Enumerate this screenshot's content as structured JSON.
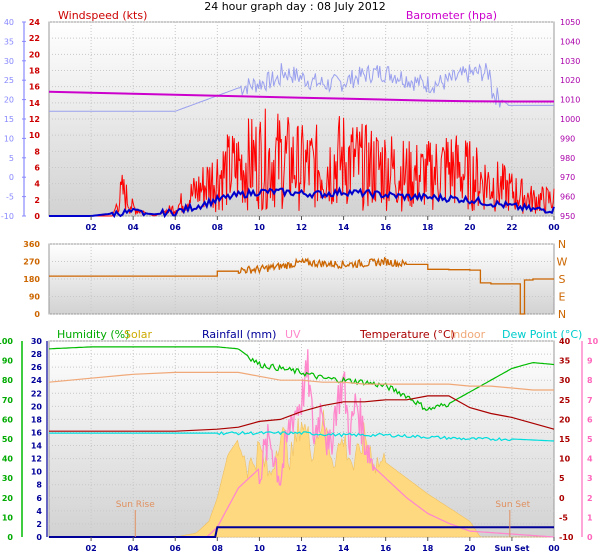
{
  "title": "24 hour graph day : 08 July 2012",
  "x_ticks": [
    "02",
    "04",
    "06",
    "08",
    "10",
    "12",
    "14",
    "16",
    "18",
    "20",
    "22",
    "00"
  ],
  "colors": {
    "wind": "#cc0000",
    "gust": "#ff0000",
    "avg": "#0000cc",
    "baro": "#cc00cc",
    "baro_axis": "#aa00aa",
    "wind_axis_light": "#8888ff",
    "dir": "#cc6600",
    "humidity": "#00bb00",
    "solar": "#ffd980",
    "rain": "#000099",
    "uv": "#ff88cc",
    "temp": "#aa0000",
    "indoor": "#f0a878",
    "dewpoint": "#00dddd",
    "annotation": "#e09060",
    "bg_top": "#ffffff",
    "bg_bottom": "#d4d4d4"
  },
  "panel1": {
    "labels": {
      "windspeed": "Windspeed (kts)",
      "barometer": "Barometer (hpa)"
    },
    "left_outer_ticks": [
      "40",
      "35",
      "30",
      "25",
      "20",
      "15",
      "10",
      "5",
      "0",
      "-5",
      "-10"
    ],
    "left_inner_ticks": [
      "24",
      "22",
      "20",
      "18",
      "16",
      "14",
      "12",
      "10",
      "8",
      "6",
      "4",
      "2",
      "0"
    ],
    "right_ticks": [
      "1050",
      "1040",
      "1030",
      "1020",
      "1010",
      "1000",
      "990",
      "980",
      "970",
      "960",
      "950"
    ]
  },
  "panel2": {
    "left_ticks": [
      "360",
      "270",
      "180",
      "90",
      "0"
    ],
    "compass": [
      "N",
      "W",
      "S",
      "E",
      "N"
    ]
  },
  "panel3": {
    "legend": {
      "humidity": "Humidity (%)",
      "solar": "Solar",
      "rainfall": "Rainfall (mm)",
      "uv": "UV",
      "temperature": "Temperature (°C)",
      "indoor": "Indoor",
      "dewpoint": "Dew Point (°C)"
    },
    "humidity_ticks": [
      "100",
      "90",
      "80",
      "70",
      "60",
      "50",
      "40",
      "30",
      "20",
      "10",
      "0"
    ],
    "rain_ticks": [
      "30",
      "28",
      "26",
      "24",
      "22",
      "20",
      "18",
      "16",
      "14",
      "12",
      "10",
      "8",
      "6",
      "4",
      "2",
      "0"
    ],
    "temp_ticks": [
      "40",
      "35",
      "30",
      "25",
      "20",
      "15",
      "10",
      "5",
      "0",
      "-5",
      "-10"
    ],
    "uv_ticks": [
      "10",
      "9",
      "8",
      "7",
      "6",
      "5",
      "4",
      "3",
      "2",
      "1",
      "0"
    ],
    "sunrise": "Sun Rise",
    "sunset": "Sun Set",
    "x_label_sunset": "Sun Set"
  },
  "chart_data": [
    {
      "type": "line",
      "title": "24 hour graph day : 08 July 2012",
      "xlabel": "",
      "x_range_hours": [
        0,
        24
      ],
      "series": [
        {
          "name": "Barometer (hpa)",
          "axis": "right",
          "ylim": [
            950,
            1050
          ],
          "x": [
            0,
            2,
            4,
            6,
            8,
            10,
            12,
            14,
            16,
            18,
            20,
            22,
            24
          ],
          "values": [
            1014,
            1013.5,
            1013,
            1012.5,
            1012,
            1011.5,
            1011,
            1010.5,
            1010,
            1009.5,
            1009.2,
            1009,
            1009
          ]
        },
        {
          "name": "Windspeed (kts)",
          "axis": "left",
          "ylim": [
            0,
            24
          ],
          "x": [
            0,
            1,
            2,
            3,
            3.5,
            4,
            5,
            6,
            7,
            8,
            9,
            10,
            11,
            12,
            13,
            14,
            15,
            16,
            17,
            18,
            19,
            20,
            21,
            22,
            23,
            24
          ],
          "values": [
            0,
            0,
            0,
            0,
            3,
            1,
            0,
            1,
            3,
            5,
            6,
            7,
            7,
            6,
            6,
            7,
            6,
            6,
            5,
            5,
            6,
            5,
            4,
            3,
            2,
            2
          ]
        },
        {
          "name": "Average wind",
          "axis": "left",
          "ylim": [
            0,
            24
          ],
          "x": [
            0,
            2,
            3,
            4,
            5,
            6,
            7,
            8,
            9,
            10,
            11,
            12,
            13,
            14,
            15,
            16,
            17,
            18,
            19,
            20,
            21,
            22,
            23,
            24
          ],
          "values": [
            0,
            0,
            0.3,
            0.5,
            0.2,
            0.5,
            1.2,
            2,
            2.6,
            3,
            3,
            2.8,
            2.7,
            3,
            2.8,
            2.6,
            2.4,
            2.3,
            2.2,
            2,
            1.6,
            1.2,
            0.8,
            0.8
          ]
        }
      ]
    },
    {
      "type": "line",
      "xlabel": "",
      "ylim": [
        0,
        360
      ],
      "x": [
        0,
        3,
        6,
        7.6,
        8,
        9,
        10,
        11,
        12,
        13,
        14,
        15,
        16,
        17,
        18,
        19,
        20,
        20.5,
        21,
        22,
        22.4,
        22.6,
        23,
        24
      ],
      "series": [
        {
          "name": "Wind direction (deg)",
          "values": [
            195,
            195,
            195,
            195,
            220,
            225,
            230,
            245,
            265,
            260,
            255,
            260,
            270,
            255,
            230,
            228,
            226,
            160,
            155,
            155,
            0,
            175,
            180,
            180
          ]
        }
      ]
    },
    {
      "type": "line",
      "xlabel": "",
      "x_range_hours": [
        0,
        24
      ],
      "series": [
        {
          "name": "Humidity (%)",
          "axis": "humidity",
          "ylim": [
            0,
            100
          ],
          "x": [
            0,
            2,
            4,
            6,
            8,
            9,
            10,
            11,
            12,
            13,
            14,
            15,
            16,
            17,
            18,
            19,
            20,
            21,
            22,
            23,
            24
          ],
          "values": [
            96,
            97,
            97,
            97,
            97,
            96,
            88,
            86,
            84,
            81,
            80,
            79,
            77,
            72,
            65,
            68,
            74,
            80,
            86,
            89,
            88
          ]
        },
        {
          "name": "Temperature (°C)",
          "axis": "temp",
          "ylim": [
            -10,
            40
          ],
          "x": [
            0,
            2,
            4,
            6,
            8,
            9,
            10,
            11,
            12,
            13,
            14,
            15,
            16,
            17,
            18,
            19,
            20,
            21,
            22,
            23,
            24
          ],
          "values": [
            17,
            17,
            17,
            17,
            17.5,
            18,
            19.5,
            20,
            22,
            23.5,
            24.5,
            24.5,
            25,
            25,
            26,
            26,
            23,
            21.5,
            20.5,
            19,
            17.5
          ]
        },
        {
          "name": "Indoor",
          "axis": "temp",
          "ylim": [
            -10,
            40
          ],
          "x": [
            0,
            2,
            4,
            6,
            8,
            9,
            10,
            11,
            12,
            13,
            14,
            15,
            16,
            17,
            18,
            19,
            20,
            21,
            22,
            23,
            24
          ],
          "values": [
            29.5,
            30.5,
            31.5,
            32,
            32,
            32,
            31,
            30,
            30,
            29.5,
            29.5,
            29,
            29,
            29,
            29,
            29,
            28.5,
            28.5,
            28,
            27.5,
            27.5
          ]
        },
        {
          "name": "Dew Point (°C)",
          "axis": "temp",
          "ylim": [
            -10,
            40
          ],
          "x": [
            0,
            2,
            4,
            6,
            8,
            10,
            12,
            14,
            16,
            18,
            20,
            22,
            24
          ],
          "values": [
            16.5,
            16.5,
            16.5,
            16.5,
            16.5,
            16.5,
            16.5,
            16,
            16,
            15.5,
            15,
            15,
            14.5
          ]
        },
        {
          "name": "Rainfall (mm)",
          "axis": "rain",
          "ylim": [
            0,
            30
          ],
          "x": [
            0,
            7.9,
            8.0,
            24
          ],
          "values": [
            0,
            0,
            1.5,
            1.5
          ]
        },
        {
          "name": "Solar",
          "axis": "humidity",
          "ylim": [
            0,
            100
          ],
          "x": [
            0,
            5,
            6,
            7,
            7.6,
            8,
            8.5,
            9,
            9.5,
            10,
            10.5,
            11,
            11.5,
            12,
            12.5,
            13,
            13.5,
            14,
            14.5,
            15,
            15.5,
            16,
            17,
            18,
            19,
            20,
            20.5,
            24
          ],
          "values": [
            0,
            0,
            0,
            2,
            8,
            20,
            42,
            50,
            35,
            45,
            30,
            55,
            40,
            60,
            45,
            60,
            40,
            50,
            35,
            52,
            38,
            38,
            30,
            22,
            15,
            8,
            0,
            0
          ]
        },
        {
          "name": "UV",
          "axis": "uv",
          "ylim": [
            0,
            10
          ],
          "x": [
            0,
            7.5,
            8,
            9,
            10,
            10.5,
            11,
            11.5,
            12,
            12.3,
            12.6,
            13,
            13.3,
            13.6,
            14,
            14.3,
            14.6,
            15,
            15.5,
            16,
            17,
            18,
            19,
            20,
            24
          ],
          "values": [
            0,
            0,
            0.5,
            2.5,
            3.5,
            5,
            3,
            6,
            7,
            8.5,
            5,
            7,
            4,
            6.5,
            8,
            5,
            7,
            5,
            3.5,
            3,
            2,
            1.2,
            0.7,
            0.3,
            0
          ]
        }
      ]
    }
  ]
}
